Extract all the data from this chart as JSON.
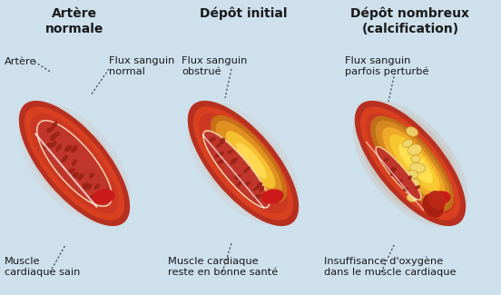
{
  "bg_color": "#cde0ec",
  "title1": "Artère\nnormale",
  "title2": "Dépôt initial",
  "title3": "Dépôt nombreux\n(calcification)",
  "label_artere": "Artère",
  "label_flux1": "Flux sanguin\nnormal",
  "label_flux2": "Flux sanguin\nobstrué",
  "label_flux3": "Flux sanguin\nparfois perturbé",
  "label_muscle1": "Muscle\ncardiaque sain",
  "label_muscle2": "Muscle cardiaque\nreste en bonne santé",
  "label_muscle3": "Insuffisance d'oxygène\ndans le muscle cardiaque",
  "text_color": "#1a1a1a"
}
